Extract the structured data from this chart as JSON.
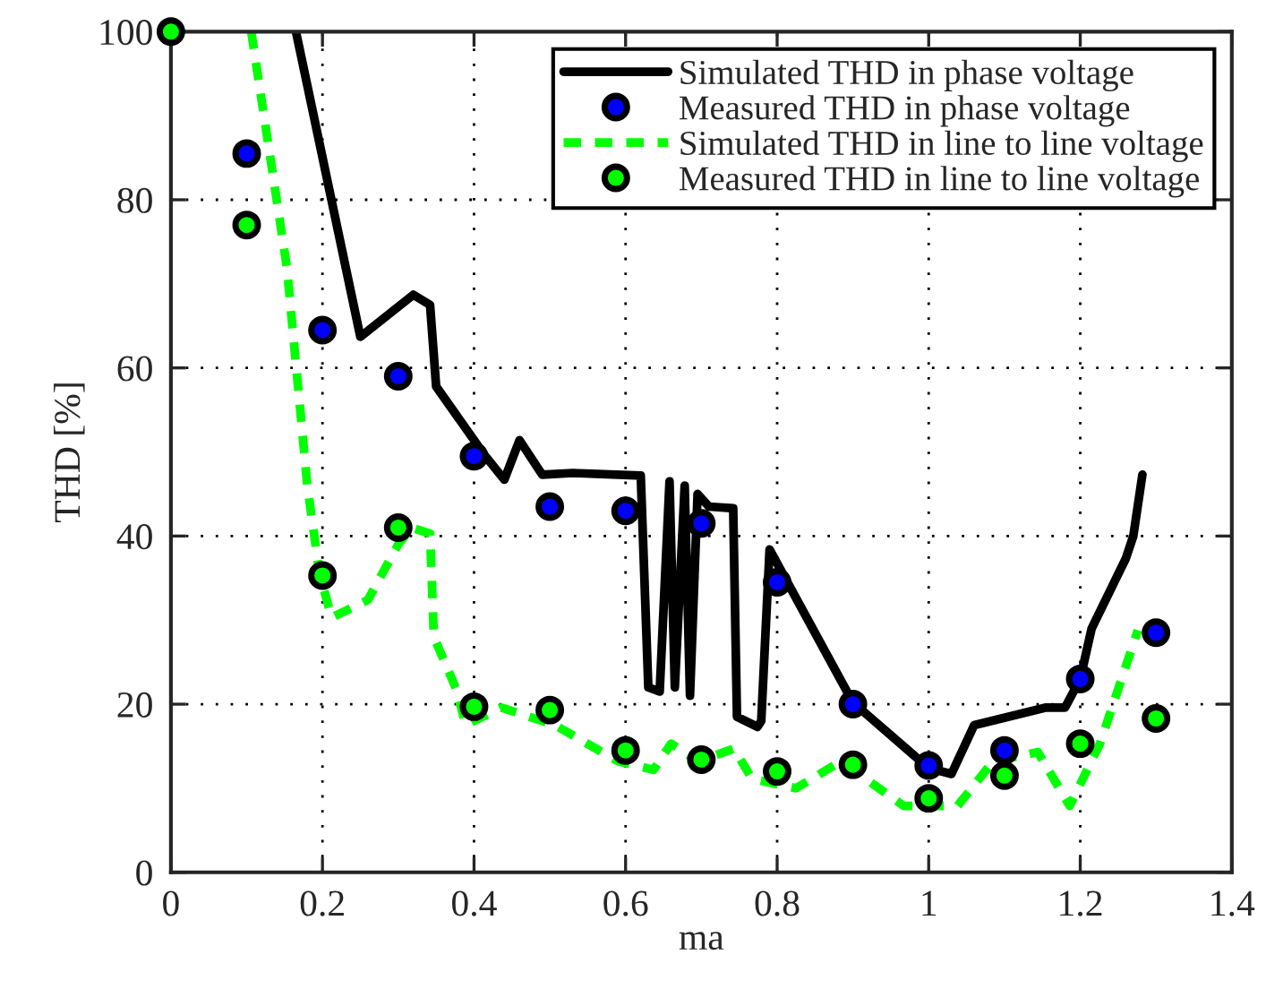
{
  "chart_data": {
    "type": "line",
    "xlabel": "ma",
    "ylabel": "THD [%]",
    "xlim": [
      0,
      1.4
    ],
    "ylim": [
      0,
      100
    ],
    "xticks": [
      0,
      0.2,
      0.4,
      0.6,
      0.8,
      1,
      1.2,
      1.4
    ],
    "yticks": [
      0,
      20,
      40,
      60,
      80,
      100
    ],
    "grid": true,
    "legend": "top right",
    "series": [
      {
        "name": "Simulated THD in phase voltage",
        "color": "#000000",
        "line_style": "solid",
        "marker": "none",
        "x": [
          0.165,
          0.25,
          0.32,
          0.342,
          0.35,
          0.415,
          0.44,
          0.46,
          0.49,
          0.53,
          0.62,
          0.63,
          0.645,
          0.658,
          0.665,
          0.678,
          0.685,
          0.695,
          0.71,
          0.742,
          0.747,
          0.774,
          0.779,
          0.79,
          0.9,
          1.0,
          1.03,
          1.06,
          1.155,
          1.18,
          1.2,
          1.215,
          1.26,
          1.27,
          1.282
        ],
        "values": [
          100,
          63.7,
          68.7,
          67.5,
          57.8,
          49.5,
          46.7,
          51.4,
          47.3,
          47.5,
          47.2,
          22,
          21.5,
          46.5,
          22,
          46,
          21,
          45,
          43.5,
          43.3,
          18.5,
          17.3,
          18,
          38.4,
          20.2,
          12.4,
          11.7,
          17.5,
          19.6,
          19.6,
          23,
          29,
          37.3,
          40,
          47.3
        ]
      },
      {
        "name": "Measured THD in phase voltage",
        "type": "scatter",
        "color": "#0000ff",
        "marker": "circle",
        "x": [
          0.1,
          0.2,
          0.3,
          0.4,
          0.5,
          0.6,
          0.7,
          0.8,
          0.9,
          1.0,
          1.1,
          1.2,
          1.3
        ],
        "values": [
          85.5,
          64.5,
          59,
          49.5,
          43.5,
          43,
          41.5,
          34.5,
          20,
          12.7,
          14.5,
          23,
          28.5
        ]
      },
      {
        "name": "Simulated THD in line to line voltage",
        "color": "#00ff00",
        "line_style": "dashed",
        "marker": "none",
        "x": [
          0.106,
          0.153,
          0.18,
          0.196,
          0.212,
          0.26,
          0.3,
          0.318,
          0.342,
          0.347,
          0.377,
          0.389,
          0.436,
          0.507,
          0.59,
          0.637,
          0.66,
          0.696,
          0.743,
          0.767,
          0.825,
          0.884,
          0.967,
          1.038,
          1.085,
          1.144,
          1.186,
          1.226,
          1.276
        ],
        "values": [
          100,
          72,
          46,
          35.6,
          30.3,
          32.4,
          39,
          41,
          40.3,
          28,
          21.7,
          17.5,
          19.6,
          17.5,
          13.2,
          12.2,
          15.3,
          13.2,
          14.7,
          11.1,
          10,
          13.2,
          7.9,
          7.9,
          13.2,
          14.3,
          7.9,
          15.3,
          28.8
        ]
      },
      {
        "name": "Measured THD in line to line voltage",
        "type": "scatter",
        "color": "#00ff00",
        "marker": "circle",
        "x": [
          0,
          0.1,
          0.2,
          0.3,
          0.4,
          0.5,
          0.6,
          0.7,
          0.8,
          0.9,
          1.0,
          1.1,
          1.2,
          1.3
        ],
        "values": [
          100,
          77,
          35.3,
          41,
          19.7,
          19.3,
          14.5,
          13.4,
          12,
          12.8,
          8.8,
          11.5,
          15.3,
          18.3
        ]
      }
    ]
  }
}
